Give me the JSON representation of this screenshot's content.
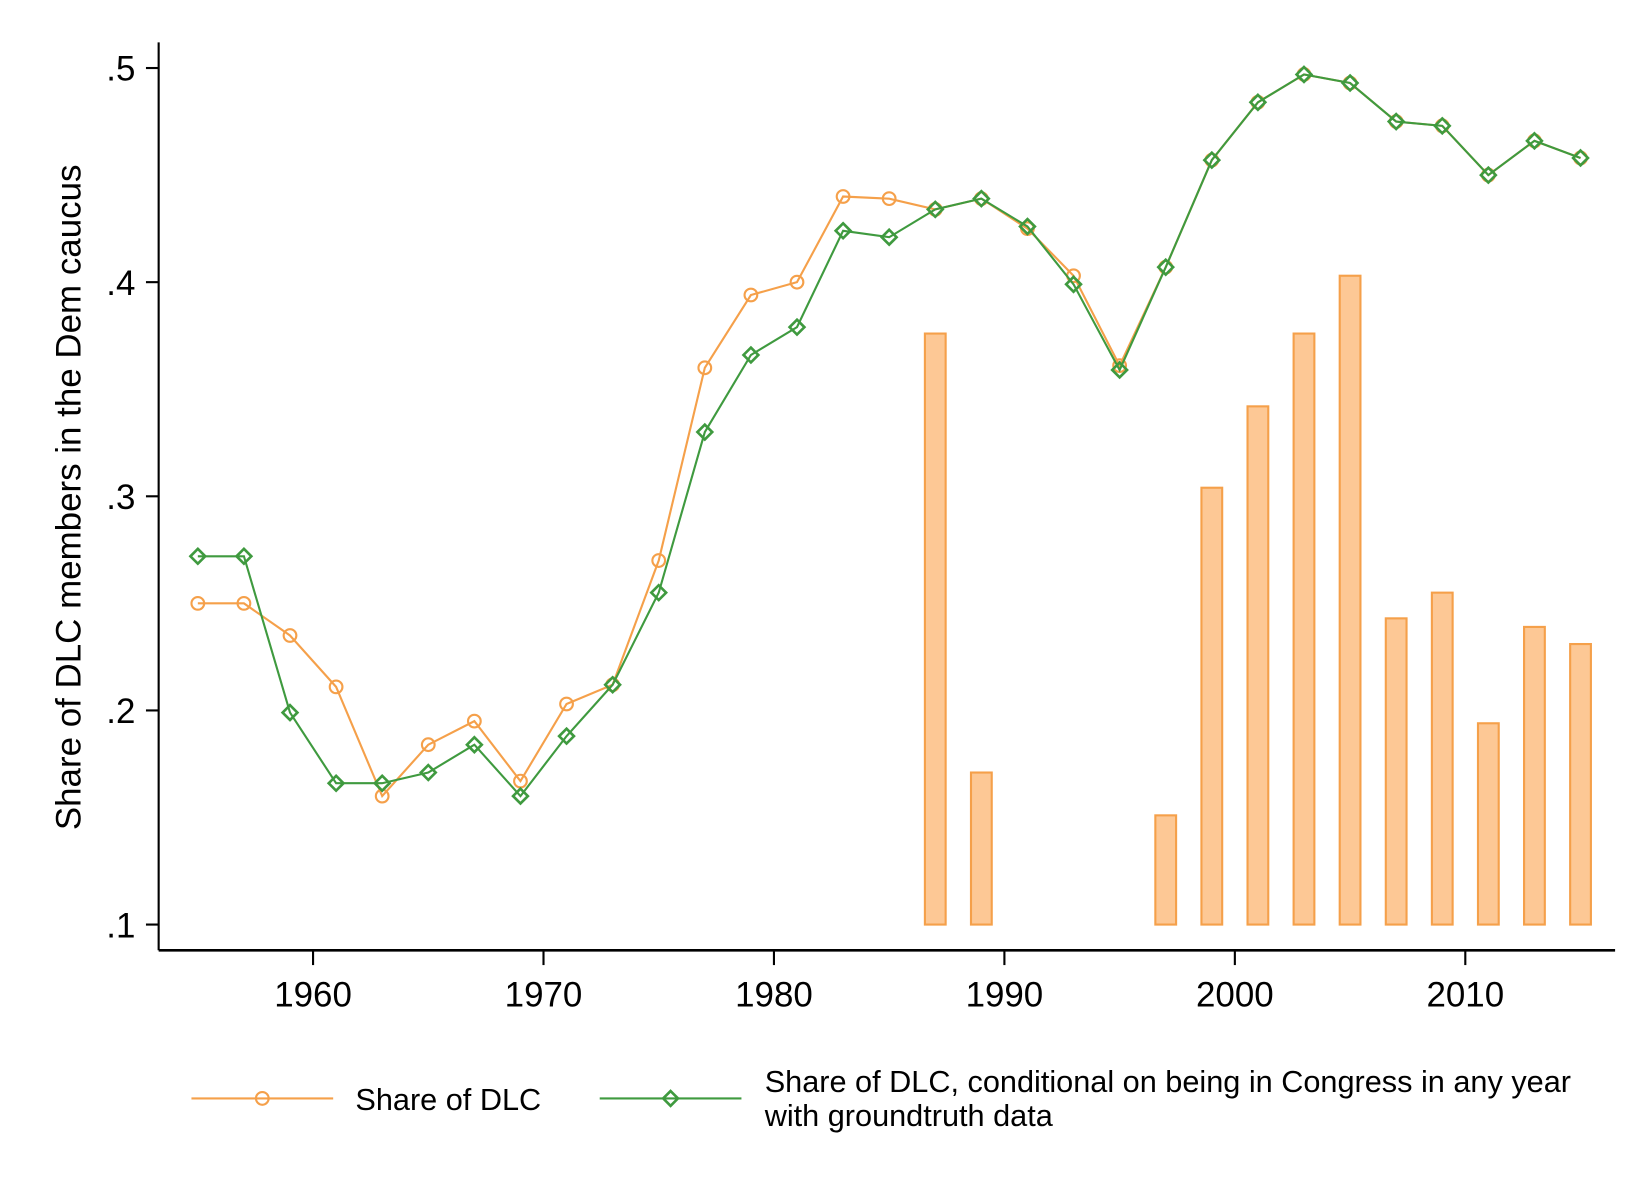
{
  "chart_data": {
    "type": "line",
    "title": "",
    "xlabel": "",
    "ylabel": "Share of DLC members in the Dem caucus",
    "xlim": [
      1953.3,
      2016.5
    ],
    "ylim": [
      0.088,
      0.512
    ],
    "xticks": [
      1960,
      1970,
      1980,
      1990,
      2000,
      2010
    ],
    "yticks": [
      0.1,
      0.2,
      0.3,
      0.4,
      0.5
    ],
    "ytick_labels": [
      ".1",
      ".2",
      ".3",
      ".4",
      ".5"
    ],
    "grid": false,
    "legend_position": "bottom",
    "x": [
      1955,
      1957,
      1959,
      1961,
      1963,
      1965,
      1967,
      1969,
      1971,
      1973,
      1975,
      1977,
      1979,
      1981,
      1983,
      1985,
      1987,
      1989,
      1991,
      1993,
      1995,
      1997,
      1999,
      2001,
      2003,
      2005,
      2007,
      2009,
      2011,
      2013,
      2015
    ],
    "series": [
      {
        "name": "Share of DLC",
        "color": "#f5a04a",
        "marker": "circle",
        "values": [
          0.25,
          0.25,
          0.235,
          0.211,
          0.16,
          0.184,
          0.195,
          0.167,
          0.203,
          0.212,
          0.27,
          0.36,
          0.394,
          0.4,
          0.44,
          0.439,
          0.434,
          0.439,
          0.425,
          0.403,
          0.361,
          0.407,
          0.457,
          0.484,
          0.497,
          0.493,
          0.475,
          0.473,
          0.45,
          0.466,
          0.458
        ]
      },
      {
        "name": "Share of DLC, conditional on being in Congress in any year with groundtruth data",
        "name_lines": [
          "Share of DLC, conditional on being in Congress in any year",
          "with groundtruth data"
        ],
        "color": "#3f9a3f",
        "marker": "diamond",
        "values": [
          0.272,
          0.272,
          0.199,
          0.166,
          0.166,
          0.171,
          0.184,
          0.16,
          0.188,
          0.212,
          0.255,
          0.33,
          0.366,
          0.379,
          0.424,
          0.421,
          0.434,
          0.439,
          0.426,
          0.399,
          0.359,
          0.407,
          0.457,
          0.484,
          0.497,
          0.493,
          0.475,
          0.473,
          0.45,
          0.466,
          0.458
        ]
      }
    ],
    "bars": {
      "base": 0.1,
      "fill": "#fdc895",
      "stroke": "#f5a04a",
      "x": [
        1987,
        1989,
        1997,
        1999,
        2001,
        2003,
        2005,
        2007,
        2009,
        2011,
        2013,
        2015
      ],
      "values": [
        0.376,
        0.171,
        0.151,
        0.304,
        0.342,
        0.376,
        0.403,
        0.243,
        0.255,
        0.194,
        0.239,
        0.231
      ]
    }
  }
}
